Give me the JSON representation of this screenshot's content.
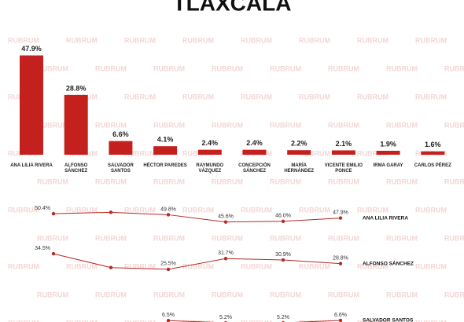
{
  "chart_data": [
    {
      "type": "bar",
      "title": "TLAXCALA",
      "watermark": "RUBRUM",
      "categories": [
        "ANA LILIA RIVERA",
        "ALFONSO SÁNCHEZ",
        "SALVADOR SANTOS",
        "HÉCTOR PAREDES",
        "RAYMUNDO VÁZQUEZ",
        "CONCEPCIÓN SÁNCHEZ",
        "MARÍA HERNÁNDEZ",
        "VICENTE EMILIO PONCE",
        "IRMA GARAY",
        "CARLOS PÉREZ"
      ],
      "values": [
        47.9,
        28.8,
        6.6,
        4.1,
        2.4,
        2.4,
        2.2,
        2.1,
        1.9,
        1.6
      ],
      "value_labels": [
        "47.9%",
        "28.8%",
        "6.6%",
        "4.1%",
        "2.4%",
        "2.4%",
        "2.2%",
        "2.1%",
        "1.9%",
        "1.6%"
      ],
      "color": "#c4201e",
      "ylim": [
        0,
        50
      ]
    },
    {
      "type": "line",
      "categories": [
        null,
        null,
        null,
        null,
        null,
        null
      ],
      "series": [
        {
          "name": "ANA LILIA RIVERA",
          "color": "#b52a24",
          "values": [
            50.4,
            51.2,
            49.8,
            45.6,
            46.0,
            47.9
          ],
          "value_labels": [
            "50.4%",
            null,
            "49.8%",
            "45.6%",
            "46.0%",
            "47.9%"
          ]
        },
        {
          "name": "ALFONSO SÁNCHEZ",
          "color": "#b52a24",
          "values": [
            34.5,
            26.5,
            25.5,
            31.7,
            30.9,
            28.8
          ],
          "value_labels": [
            "34.5%",
            null,
            "25.5%",
            "31.7%",
            "30.9%",
            "28.8%"
          ]
        },
        {
          "name": "SALVADOR SANTOS",
          "color": "#b52a24",
          "values": [
            null,
            null,
            6.5,
            5.2,
            5.2,
            6.6
          ],
          "value_labels": [
            null,
            null,
            "6.5%",
            "5.2%",
            "5.2%",
            "6.6%"
          ]
        }
      ]
    }
  ]
}
